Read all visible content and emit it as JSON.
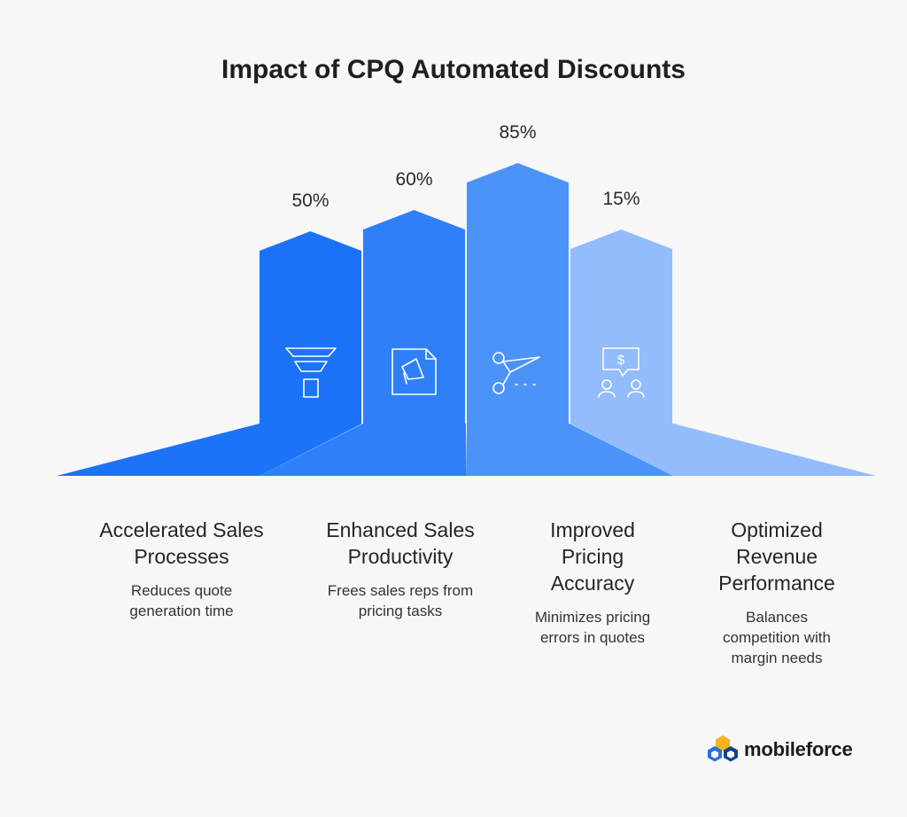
{
  "title": "Impact of CPQ Automated Discounts",
  "chart_data": {
    "type": "bar",
    "title": "Impact of CPQ Automated Discounts",
    "categories": [
      "Accelerated Sales Processes",
      "Enhanced Sales Productivity",
      "Improved Pricing Accuracy",
      "Optimized Revenue Performance"
    ],
    "values": [
      50,
      60,
      85,
      15
    ],
    "value_labels": [
      "50%",
      "60%",
      "85%",
      "15%"
    ],
    "descriptions": [
      "Reduces quote\ngeneration time",
      "Frees sales reps from\npricing tasks",
      "Minimizes pricing\nerrors in quotes",
      "Balances\ncompetition with\nmargin needs"
    ],
    "category_lines": [
      "Accelerated Sales\nProcesses",
      "Enhanced Sales\nProductivity",
      "Improved\nPricing\nAccuracy",
      "Optimized\nRevenue\nPerformance"
    ],
    "icons": [
      "funnel-icon",
      "megaphone-document-icon",
      "scissors-icon",
      "people-dollar-chat-icon"
    ],
    "colors": [
      "#1c73f7",
      "#2f80f8",
      "#4b93f9",
      "#92bcfc"
    ],
    "xlabel": "",
    "ylabel": ""
  },
  "brand": {
    "name": "mobileforce",
    "colors": [
      "#f2b51c",
      "#2b6fe3",
      "#15418f"
    ]
  }
}
